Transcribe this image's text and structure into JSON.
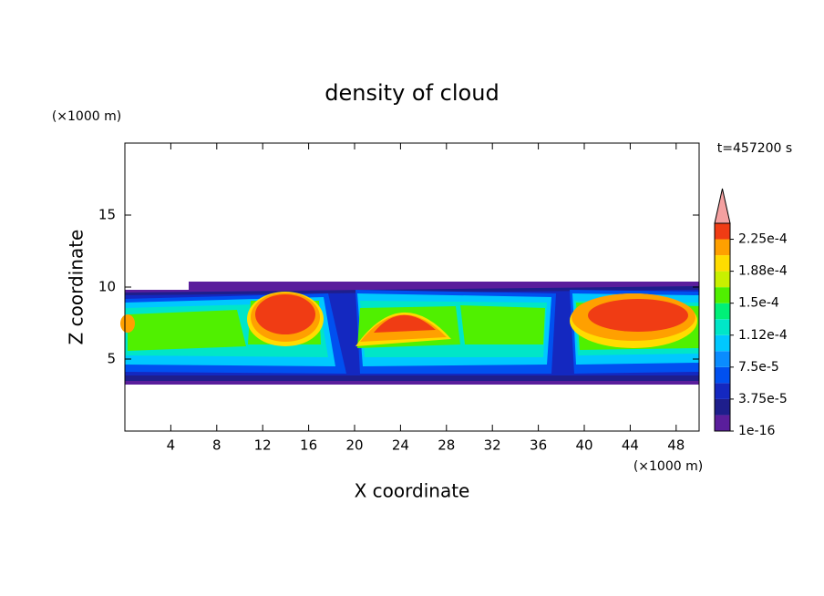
{
  "chart_data": {
    "type": "contour",
    "title": "density of cloud",
    "x_label": "X coordinate",
    "y_label": "Z coordinate",
    "x_unit": "(×1000 m)",
    "y_unit": "(×1000 m)",
    "time_label": "t=457200 s",
    "xlim": [
      0,
      50
    ],
    "xticks": [
      4,
      8,
      12,
      16,
      20,
      24,
      28,
      32,
      36,
      40,
      44,
      48
    ],
    "ylim": [
      0,
      20
    ],
    "yticks": [
      5,
      10,
      15
    ],
    "colorbar": {
      "clim": [
        1e-16,
        0.00024375
      ],
      "levels": [
        1e-16,
        1.875e-05,
        3.75e-05,
        5.625e-05,
        7.5e-05,
        9.375e-05,
        0.0001125,
        0.00013125,
        0.00015,
        0.00016875,
        0.0001875,
        0.00020625,
        0.000225
      ],
      "colors": [
        "#5a1e9c",
        "#1e1e8c",
        "#1428c0",
        "#0050f0",
        "#0a8cff",
        "#00c8ff",
        "#00e6c8",
        "#00f078",
        "#50f000",
        "#c8f000",
        "#ffdc00",
        "#ffa000",
        "#f03c14"
      ],
      "extend_color": "#f4a0a0",
      "ticks": [
        {
          "value": 1e-16,
          "label": "1e-16"
        },
        {
          "value": 3.75e-05,
          "label": "3.75e-5"
        },
        {
          "value": 7.5e-05,
          "label": "7.5e-5"
        },
        {
          "value": 0.0001125,
          "label": "1.12e-4"
        },
        {
          "value": 0.00015,
          "label": "1.5e-4"
        },
        {
          "value": 0.0001875,
          "label": "1.88e-4"
        },
        {
          "value": 0.000225,
          "label": "2.25e-4"
        }
      ]
    }
  }
}
